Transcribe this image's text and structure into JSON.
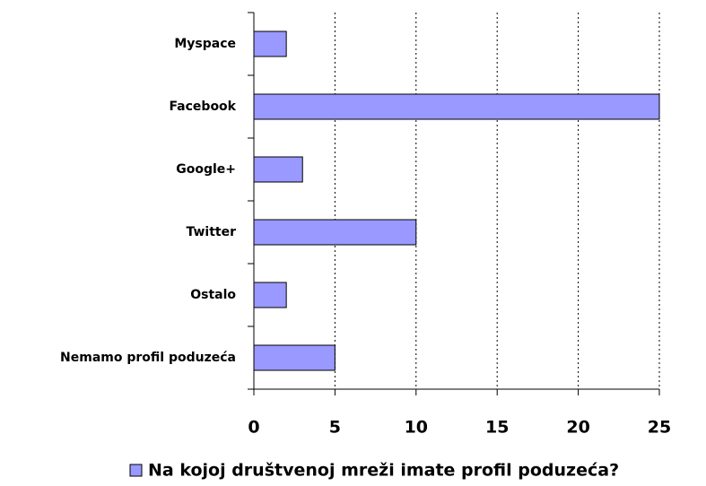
{
  "chart_data": {
    "type": "barh",
    "categories": [
      "Myspace",
      "Facebook",
      "Google+",
      "Twitter",
      "Ostalo",
      "Nemamo profil poduzeća"
    ],
    "series": [
      {
        "name": "Na kojoj društvenoj mreži imate profil poduzeća?",
        "color": "#9999ff",
        "values": [
          2,
          25,
          3,
          10,
          2,
          5
        ]
      }
    ],
    "xlim": [
      0,
      25
    ],
    "xticks": [
      0,
      5,
      10,
      15,
      20,
      25
    ],
    "grid": true,
    "legend": "bottom"
  }
}
